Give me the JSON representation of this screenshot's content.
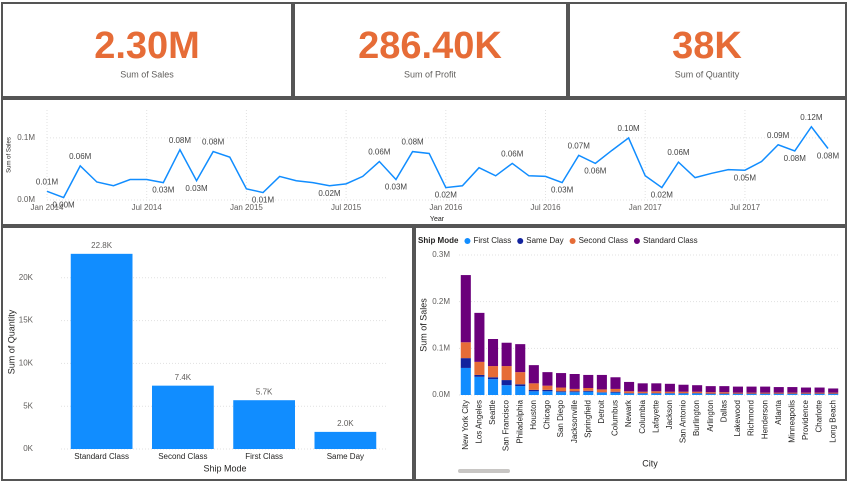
{
  "cards": [
    {
      "value": "2.30M",
      "label": "Sum of Sales"
    },
    {
      "value": "286.40K",
      "label": "Sum of Profit"
    },
    {
      "value": "38K",
      "label": "Sum of Quantity"
    }
  ],
  "chart_data": [
    {
      "type": "line",
      "x_label": "Year",
      "y_label": "Sum of Sales",
      "color": "#118dff",
      "grid": true,
      "categories": [
        "Jan 2014",
        null,
        null,
        null,
        null,
        null,
        "Jul 2014",
        null,
        null,
        null,
        null,
        null,
        "Jan 2015",
        null,
        null,
        null,
        null,
        null,
        "Jul 2015",
        null,
        null,
        null,
        null,
        null,
        "Jan 2016",
        null,
        null,
        null,
        null,
        null,
        "Jul 2016",
        null,
        null,
        null,
        null,
        null,
        "Jan 2017",
        null,
        null,
        null,
        null,
        null,
        "Jul 2017",
        null,
        null,
        null,
        null,
        null
      ],
      "values": [
        14000,
        4000,
        55000,
        29000,
        23000,
        33000,
        33000,
        28000,
        81000,
        31000,
        78000,
        69000,
        18000,
        12000,
        38000,
        31000,
        28000,
        23000,
        26000,
        38000,
        62000,
        33000,
        78000,
        75000,
        20000,
        23000,
        52000,
        39000,
        59000,
        39000,
        38000,
        28000,
        72000,
        59000,
        80000,
        100000,
        39000,
        20000,
        61000,
        36000,
        43000,
        49000,
        48000,
        62000,
        89000,
        79000,
        118000,
        83000
      ],
      "value_labels": [
        "0.01M",
        "0.00M",
        "0.06M",
        null,
        null,
        null,
        null,
        "0.03M",
        "0.08M",
        "0.03M",
        "0.08M",
        null,
        null,
        "0.01M",
        null,
        null,
        null,
        "0.02M",
        null,
        null,
        "0.06M",
        "0.03M",
        "0.08M",
        null,
        "0.02M",
        null,
        null,
        null,
        "0.06M",
        null,
        null,
        "0.03M",
        "0.07M",
        "0.06M",
        null,
        "0.10M",
        null,
        "0.02M",
        "0.06M",
        null,
        null,
        null,
        "0.05M",
        null,
        "0.09M",
        "0.08M",
        "0.12M",
        "0.08M"
      ],
      "ylim": [
        0,
        145000
      ],
      "yticks": [
        {
          "value": 0,
          "label": "0.0M"
        },
        {
          "value": 100000,
          "label": "0.1M"
        }
      ]
    },
    {
      "type": "bar",
      "x_label": "Ship Mode",
      "y_label": "Sum of Quantity",
      "color": "#118dff",
      "grid": true,
      "categories": [
        "Standard Class",
        "Second Class",
        "First Class",
        "Same Day"
      ],
      "values": [
        22800,
        7400,
        5700,
        2000
      ],
      "value_labels": [
        "22.8K",
        "7.4K",
        "5.7K",
        "2.0K"
      ],
      "ylim": [
        0,
        25000
      ],
      "yticks": [
        {
          "value": 0,
          "label": "0K"
        },
        {
          "value": 5000,
          "label": "5K"
        },
        {
          "value": 10000,
          "label": "10K"
        },
        {
          "value": 15000,
          "label": "15K"
        },
        {
          "value": 20000,
          "label": "20K"
        }
      ]
    },
    {
      "type": "stacked_bar",
      "x_label": "City",
      "y_label": "Sum of Sales",
      "legend_title": "Ship Mode",
      "grid": true,
      "categories": [
        "New York City",
        "Los Angeles",
        "Seattle",
        "San Francisco",
        "Philadelphia",
        "Houston",
        "Chicago",
        "San Diego",
        "Jacksonville",
        "Springfield",
        "Detroit",
        "Columbus",
        "Newark",
        "Columbia",
        "Lafayette",
        "Jackson",
        "San Antonio",
        "Burlington",
        "Arlington",
        "Dallas",
        "Lakewood",
        "Richmond",
        "Henderson",
        "Atlanta",
        "Minneapolis",
        "Providence",
        "Charlotte",
        "Long Beach"
      ],
      "series": [
        {
          "name": "First Class",
          "color": "#118dff",
          "values": [
            58000,
            39000,
            34000,
            21000,
            19000,
            8000,
            8000,
            6000,
            6000,
            7000,
            5000,
            5000,
            3000,
            3000,
            3000,
            3000,
            3000,
            3000,
            2000,
            2000,
            2000,
            2000,
            2000,
            2000,
            2000,
            2000,
            2000,
            2000
          ]
        },
        {
          "name": "Same Day",
          "color": "#12239e",
          "values": [
            21000,
            4000,
            4000,
            11000,
            4000,
            3000,
            3000,
            2000,
            2000,
            2000,
            1000,
            2000,
            1000,
            1000,
            1000,
            1000,
            1000,
            1000,
            1000,
            1000,
            1000,
            1000,
            1000,
            1000,
            1000,
            1000,
            1000,
            1000
          ]
        },
        {
          "name": "Second Class",
          "color": "#e66c37",
          "values": [
            34000,
            28000,
            24000,
            30000,
            26000,
            14000,
            9000,
            8000,
            5000,
            6000,
            6000,
            6000,
            4000,
            3000,
            4000,
            3000,
            3000,
            3000,
            3000,
            3000,
            2000,
            2000,
            2000,
            2000,
            2000,
            2000,
            2000,
            2000
          ]
        },
        {
          "name": "Standard Class",
          "color": "#6b007b",
          "values": [
            144000,
            105000,
            58000,
            50000,
            60000,
            39000,
            29000,
            31000,
            32000,
            28000,
            31000,
            25000,
            20000,
            18000,
            17000,
            17000,
            15000,
            14000,
            13000,
            13000,
            13000,
            13000,
            13000,
            12000,
            12000,
            11000,
            11000,
            9000
          ]
        }
      ],
      "ylim": [
        0,
        300000
      ],
      "yticks": [
        {
          "value": 0,
          "label": "0.0M"
        },
        {
          "value": 100000,
          "label": "0.1M"
        },
        {
          "value": 200000,
          "label": "0.2M"
        },
        {
          "value": 300000,
          "label": "0.3M"
        }
      ]
    }
  ]
}
